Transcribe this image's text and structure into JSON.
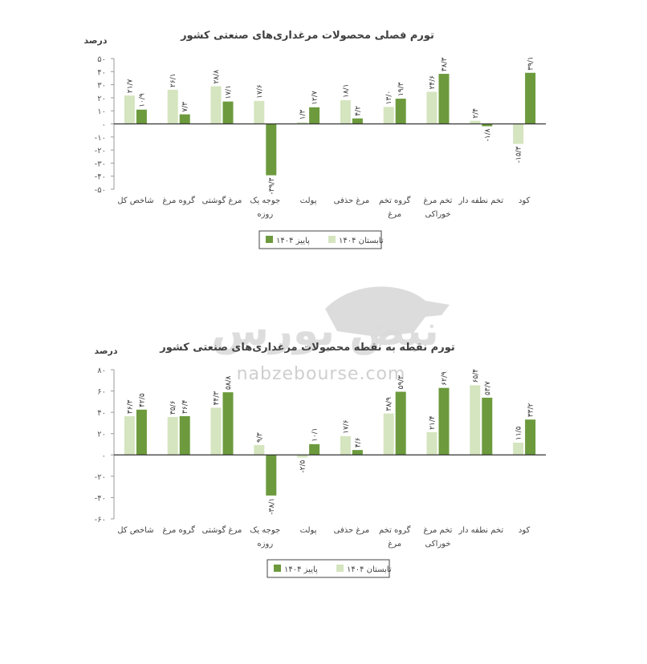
{
  "watermark": {
    "brand": "نبض بورس",
    "url": "nabzebourse.com"
  },
  "chart_data": [
    {
      "type": "bar",
      "title": "تورم فصلی محصولات مرغداری‌های صنعتی کشور",
      "ylabel": "درصد",
      "ylim": [
        -50,
        50
      ],
      "yticks": [
        "۵۰",
        "۴۰",
        "۳۰",
        "۲۰",
        "۱۰",
        "۰",
        "-۱۰",
        "-۲۰",
        "-۳۰",
        "-۴۰",
        "-۵۰"
      ],
      "categories": [
        [
          "شاخص کل"
        ],
        [
          "گروه مرغ"
        ],
        [
          "مرغ گوشتی"
        ],
        [
          "جوجه یک",
          "روزه"
        ],
        [
          "پولت"
        ],
        [
          "مرغ حذفی"
        ],
        [
          "گروه تخم",
          "مرغ"
        ],
        [
          "تخم مرغ",
          "خوراکی"
        ],
        [
          "تخم نطفه دار"
        ],
        [
          "کود"
        ]
      ],
      "series": [
        {
          "name": "تابستان ۱۴۰۴",
          "color": "#d5e5bf",
          "values": [
            21.7,
            26.1,
            28.8,
            17.6,
            1.3,
            18.1,
            13.0,
            24.6,
            2.4,
            -15.3
          ],
          "labels": [
            "۲۱/۷",
            "۲۶/۱",
            "۲۸/۸",
            "۱۷/۶",
            "۱/۳",
            "۱۸/۱",
            "۱۳/۰",
            "۲۴/۶",
            "۲/۴",
            "-۱۵/۳"
          ]
        },
        {
          "name": "پاییز ۱۴۰۴",
          "color": "#6c9a3d",
          "values": [
            10.9,
            7.3,
            17.1,
            -39.3,
            12.7,
            4.2,
            19.3,
            38.3,
            -1.8,
            39.1
          ],
          "labels": [
            "۱۰/۹",
            "۷/۳",
            "۱۷/۱",
            "-۳۹/۳",
            "۱۲/۷",
            "۴/۲",
            "۱۹/۳",
            "۳۸/۳",
            "-۱/۸",
            "۳۹/۱"
          ]
        }
      ],
      "legend": "bottom"
    },
    {
      "type": "bar",
      "title": "تورم نقطه به نقطه محصولات مرغداری‌های صنعتی کشور",
      "ylabel": "درصد",
      "ylim": [
        -60,
        80
      ],
      "yticks": [
        "۸۰",
        "۶۰",
        "۴۰",
        "۲۰",
        "۰",
        "-۲۰",
        "-۴۰",
        "-۶۰"
      ],
      "categories": [
        [
          "شاخص کل"
        ],
        [
          "گروه مرغ"
        ],
        [
          "مرغ گوشتی"
        ],
        [
          "جوجه یک",
          "روزه"
        ],
        [
          "پولت"
        ],
        [
          "مرغ حذفی"
        ],
        [
          "گروه تخم",
          "مرغ"
        ],
        [
          "تخم مرغ",
          "خوراکی"
        ],
        [
          "تخم نطفه دار"
        ],
        [
          "کود"
        ]
      ],
      "series": [
        {
          "name": "تابستان ۱۴۰۴",
          "color": "#d5e5bf",
          "values": [
            36.3,
            35.6,
            44.3,
            9.3,
            -2.5,
            17.6,
            38.9,
            21.4,
            65.4,
            11.5
          ],
          "labels": [
            "۳۶/۳",
            "۳۵/۶",
            "۴۴/۳",
            "۹/۳",
            "-۲/۵",
            "۱۷/۶",
            "۳۸/۹",
            "۲۱/۴",
            "۶۵/۴",
            "۱۱/۵"
          ]
        },
        {
          "name": "پاییز ۱۴۰۴",
          "color": "#6c9a3d",
          "values": [
            42.5,
            36.4,
            58.8,
            -38.1,
            10.1,
            4.6,
            59.3,
            62.9,
            53.7,
            33.2
          ],
          "labels": [
            "۴۲/۵",
            "۳۶/۴",
            "۵۸/۸",
            "-۳۸/۱",
            "۱۰/۱",
            "۴/۶",
            "۵۹/۳",
            "۶۲/۹",
            "۵۳/۷",
            "۳۳/۲"
          ]
        }
      ],
      "legend": "bottom"
    }
  ]
}
